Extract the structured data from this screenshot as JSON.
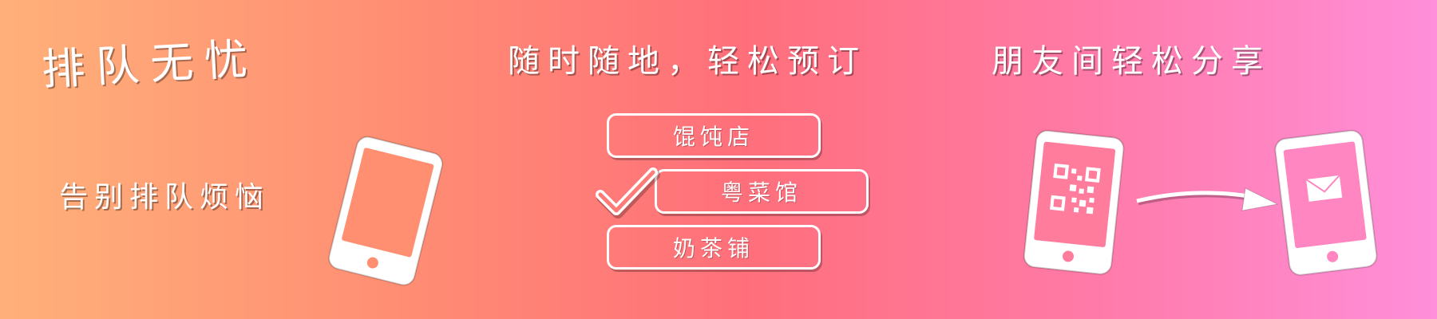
{
  "banner": {
    "headline_left": "排队无忧",
    "subline_left": "告别排队烦恼",
    "headline_center": "随时随地，轻松预订",
    "headline_right": "朋友间轻松分享",
    "options": [
      "馄饨店",
      "粤菜馆",
      "奶茶铺"
    ],
    "selected_option": "粤菜馆"
  },
  "icons": {
    "phone_left": "phone-icon",
    "checkmark": "checkmark-icon",
    "phone_qr": "qr-code-phone-icon",
    "arrow": "arrow-right-icon",
    "phone_mail": "envelope-phone-icon"
  },
  "colors": {
    "gradient_start": "#ffb07a",
    "gradient_mid": "#ff6f7b",
    "gradient_end": "#ff8fda",
    "foreground": "#ffffff"
  }
}
